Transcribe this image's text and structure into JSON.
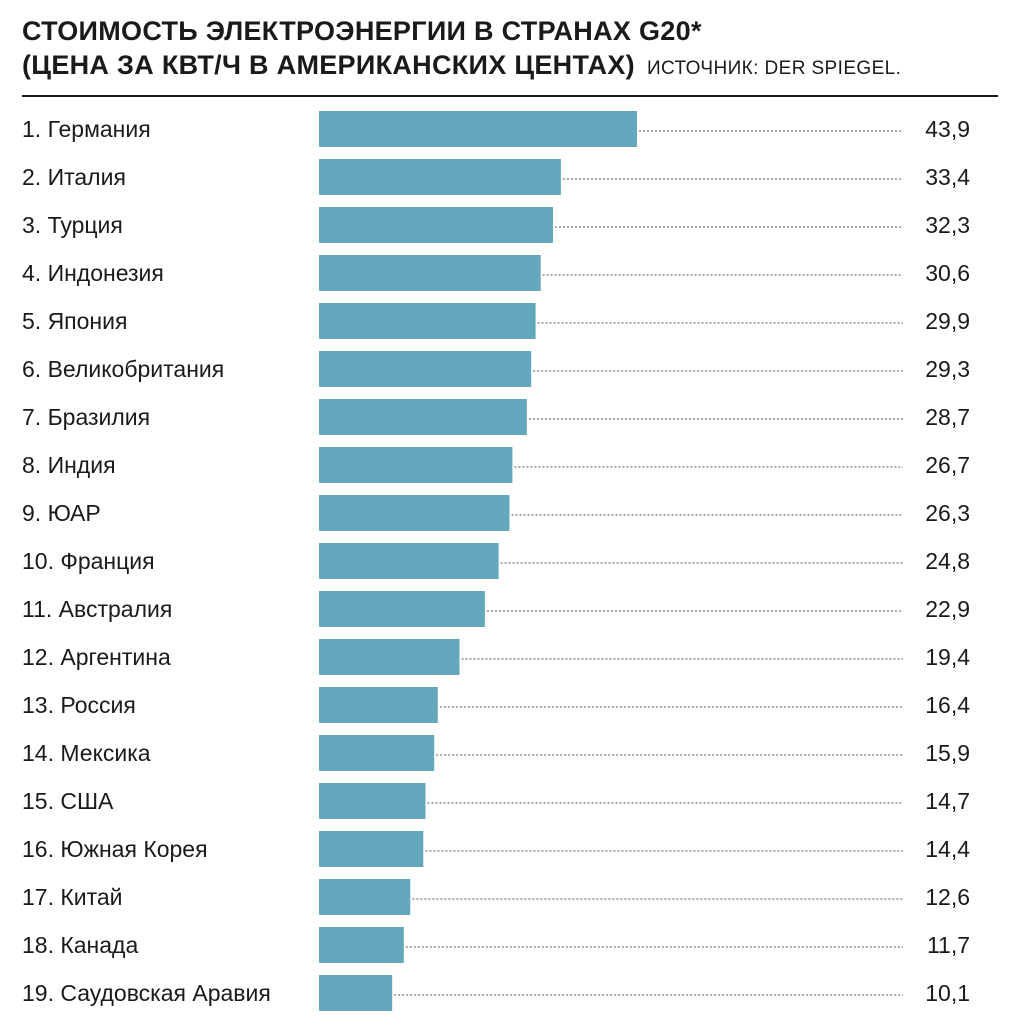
{
  "header": {
    "title_line1": "СТОИМОСТЬ ЭЛЕКТРОЭНЕРГИИ В СТРАНАХ G20*",
    "title_line2": "(ЦЕНА ЗА КВТ/Ч В АМЕРИКАНСКИХ ЦЕНТАХ)",
    "source": "ИСТОЧНИК: DER SPIEGEL."
  },
  "colors": {
    "bar": "#63a8bd",
    "text": "#1a1a1a",
    "leader": "#555555"
  },
  "chart_data": {
    "type": "bar",
    "orientation": "horizontal",
    "title": "СТОИМОСТЬ ЭЛЕКТРОЭНЕРГИИ В СТРАНАХ G20* (ЦЕНА ЗА КВТ/Ч В АМЕРИКАНСКИХ ЦЕНТАХ)",
    "source": "ИСТОЧНИК: DER SPIEGEL.",
    "categories": [
      "1. Германия",
      "2. Италия",
      "3. Турция",
      "4. Индонезия",
      "5. Япония",
      "6. Великобритания",
      "7. Бразилия",
      "8. Индия",
      "9. ЮАР",
      "10. Франция",
      "11. Австралия",
      "12. Аргентина",
      "13. Россия",
      "14. Мексика",
      "15. США",
      "16. Южная Корея",
      "17. Китай",
      "18. Канада",
      "19. Саудовская Аравия"
    ],
    "values": [
      43.9,
      33.4,
      32.3,
      30.6,
      29.9,
      29.3,
      28.7,
      26.7,
      26.3,
      24.8,
      22.9,
      19.4,
      16.4,
      15.9,
      14.7,
      14.4,
      12.6,
      11.7,
      10.1
    ],
    "value_labels": [
      "43,9",
      "33,4",
      "32,3",
      "30,6",
      "29,9",
      "29,3",
      "28,7",
      "26,7",
      "26,3",
      "24,8",
      "22,9",
      "19,4",
      "16,4",
      "15,9",
      "14,7",
      "14,4",
      "12,6",
      "11,7",
      "10,1"
    ],
    "xlim": [
      0,
      43.9
    ],
    "grid": false,
    "legend": "none"
  }
}
